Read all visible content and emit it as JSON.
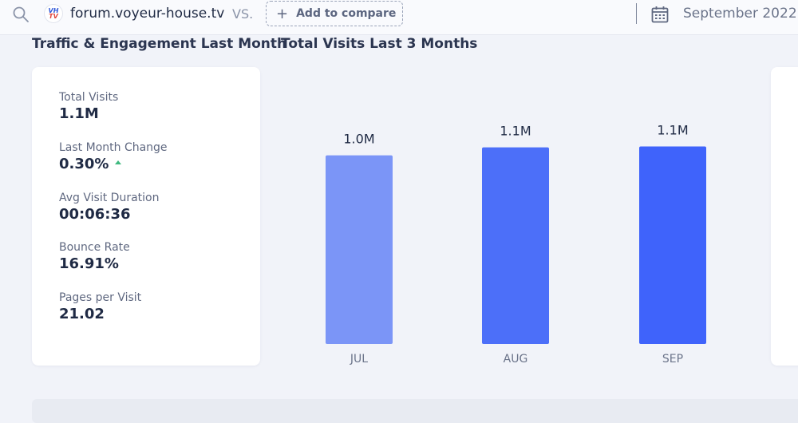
{
  "header": {
    "domain": "forum.voyeur-house.tv",
    "logo_line1": "VH",
    "logo_line2": "TV",
    "vs_label": "VS.",
    "compare_label": "Add to compare",
    "compare_plus": "+",
    "date_label": "September 2022",
    "icons": {
      "search": "search-icon",
      "calendar": "calendar-icon",
      "plus": "plus-icon"
    }
  },
  "sections": {
    "engagement_title": "Traffic & Engagement Last Month",
    "visits_title": "Total Visits Last 3 Months"
  },
  "metrics": [
    {
      "label": "Total Visits",
      "value": "1.1M"
    },
    {
      "label": "Last Month Change",
      "value": "0.30%",
      "trend": "up"
    },
    {
      "label": "Avg Visit Duration",
      "value": "00:06:36"
    },
    {
      "label": "Bounce Rate",
      "value": "16.91%"
    },
    {
      "label": "Pages per Visit",
      "value": "21.02"
    }
  ],
  "colors": {
    "bar_jul": "#7b95f7",
    "bar_aug": "#4c6ff9",
    "bar_sep": "#3f63fb",
    "trend_up": "#3fb97f"
  },
  "chart_data": {
    "type": "bar",
    "title": "Total Visits Last 3 Months",
    "categories": [
      "JUL",
      "AUG",
      "SEP"
    ],
    "values": [
      1.0,
      1.1,
      1.1
    ],
    "value_labels": [
      "1.0M",
      "1.1M",
      "1.1M"
    ],
    "ylabel": "",
    "xlabel": "",
    "unit": "M visits"
  }
}
